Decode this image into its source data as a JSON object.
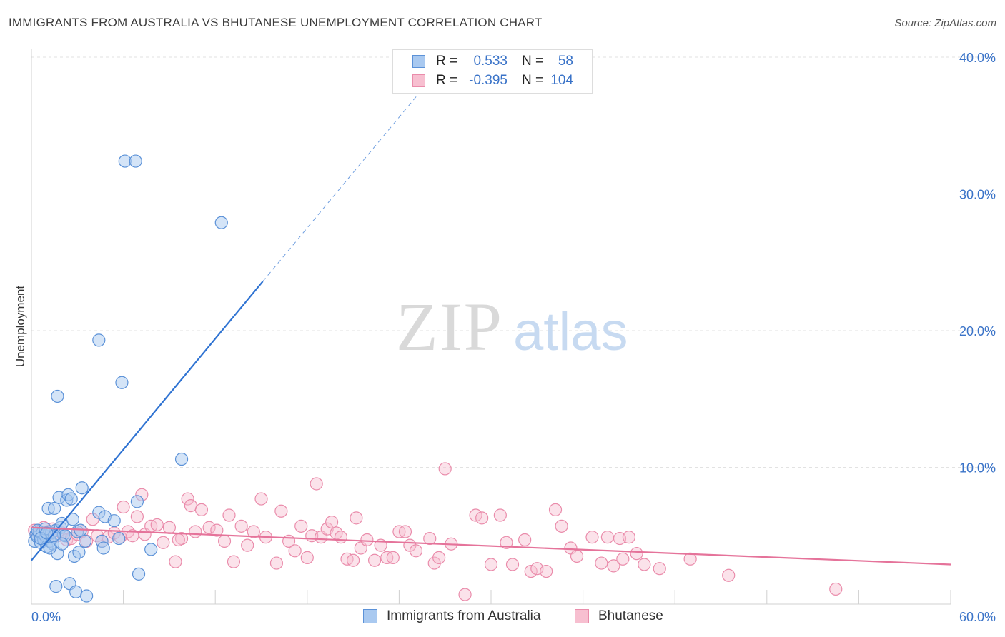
{
  "title": "IMMIGRANTS FROM AUSTRALIA VS BHUTANESE UNEMPLOYMENT CORRELATION CHART",
  "source": "Source: ZipAtlas.com",
  "watermark": {
    "zip": "ZIP",
    "atlas": "atlas"
  },
  "legend_top": [
    {
      "r_label": "R =",
      "r_value": "0.533",
      "n_label": "N =",
      "n_value": "58"
    },
    {
      "r_label": "R =",
      "r_value": "-0.395",
      "n_label": "N =",
      "n_value": "104"
    }
  ],
  "legend_bottom": [
    "Immigrants from Australia",
    "Bhutanese"
  ],
  "colors": {
    "blue_fill": "#a9c9f0",
    "blue_stroke": "#5c92d8",
    "blue_line": "#2f73d2",
    "pink_fill": "#f7bfd0",
    "pink_stroke": "#ea8cab",
    "pink_line": "#e5739a",
    "grid": "#e2e2e2",
    "axis_text": "#3a73c8"
  },
  "chart_data": {
    "type": "scatter",
    "title": "IMMIGRANTS FROM AUSTRALIA VS BHUTANESE UNEMPLOYMENT CORRELATION CHART",
    "xlabel": "",
    "ylabel": "Unemployment",
    "xlim": [
      0,
      60
    ],
    "ylim": [
      0,
      40
    ],
    "x_tick_labels": [
      "0.0%",
      "60.0%"
    ],
    "y_ticks": [
      10,
      20,
      30,
      40
    ],
    "y_tick_labels": [
      "10.0%",
      "20.0%",
      "30.0%",
      "40.0%"
    ],
    "series": [
      {
        "name": "Immigrants from Australia",
        "r": 0.533,
        "n": 58,
        "trend": {
          "x0": 0,
          "y0": 3.2,
          "x1": 15.1,
          "y1": 23.6,
          "dash_x1": 25.4,
          "dash_y1": 37.5
        },
        "points": [
          [
            0.2,
            4.6
          ],
          [
            0.3,
            5.1
          ],
          [
            0.4,
            4.9
          ],
          [
            0.5,
            5.3
          ],
          [
            0.6,
            4.5
          ],
          [
            0.7,
            5.2
          ],
          [
            0.8,
            4.7
          ],
          [
            0.9,
            5.0
          ],
          [
            1.0,
            4.2
          ],
          [
            1.1,
            7.0
          ],
          [
            1.2,
            4.6
          ],
          [
            1.3,
            5.2
          ],
          [
            1.4,
            4.4
          ],
          [
            1.5,
            7.0
          ],
          [
            1.6,
            5.4
          ],
          [
            1.7,
            3.7
          ],
          [
            1.8,
            7.8
          ],
          [
            1.9,
            5.6
          ],
          [
            2.0,
            5.9
          ],
          [
            2.1,
            5.1
          ],
          [
            2.2,
            5.0
          ],
          [
            2.3,
            7.6
          ],
          [
            2.4,
            8.0
          ],
          [
            2.6,
            7.7
          ],
          [
            2.7,
            6.2
          ],
          [
            2.8,
            3.5
          ],
          [
            3.0,
            5.3
          ],
          [
            3.1,
            3.8
          ],
          [
            3.3,
            8.5
          ],
          [
            3.5,
            4.6
          ],
          [
            4.4,
            6.7
          ],
          [
            4.6,
            4.6
          ],
          [
            4.7,
            4.1
          ],
          [
            4.8,
            6.4
          ],
          [
            5.4,
            6.1
          ],
          [
            5.7,
            4.8
          ],
          [
            1.7,
            15.2
          ],
          [
            4.4,
            19.3
          ],
          [
            5.9,
            16.2
          ],
          [
            6.1,
            32.4
          ],
          [
            6.8,
            32.4
          ],
          [
            12.4,
            27.9
          ],
          [
            9.8,
            10.6
          ],
          [
            7.0,
            2.2
          ],
          [
            6.9,
            7.5
          ],
          [
            7.8,
            4.0
          ],
          [
            1.6,
            1.3
          ],
          [
            2.5,
            1.5
          ],
          [
            2.9,
            0.9
          ],
          [
            3.6,
            0.6
          ],
          [
            0.4,
            5.4
          ],
          [
            1.2,
            4.1
          ],
          [
            0.9,
            5.5
          ],
          [
            1.5,
            5.0
          ],
          [
            2.0,
            4.4
          ],
          [
            0.6,
            4.8
          ],
          [
            1.0,
            5.2
          ],
          [
            3.2,
            5.4
          ]
        ]
      },
      {
        "name": "Bhutanese",
        "r": -0.395,
        "n": 104,
        "trend": {
          "x0": 0,
          "y0": 5.6,
          "x1": 60,
          "y1": 2.9
        },
        "points": [
          [
            0.2,
            5.4
          ],
          [
            0.5,
            5.1
          ],
          [
            0.8,
            5.6
          ],
          [
            1.1,
            5.3
          ],
          [
            1.4,
            5.5
          ],
          [
            1.7,
            5.0
          ],
          [
            2.0,
            5.2
          ],
          [
            2.3,
            4.7
          ],
          [
            2.6,
            4.8
          ],
          [
            3.0,
            5.1
          ],
          [
            3.3,
            5.3
          ],
          [
            3.6,
            4.6
          ],
          [
            4.0,
            6.2
          ],
          [
            4.3,
            5.0
          ],
          [
            4.6,
            4.6
          ],
          [
            5.0,
            4.9
          ],
          [
            5.4,
            5.2
          ],
          [
            5.8,
            4.9
          ],
          [
            6.0,
            7.1
          ],
          [
            6.3,
            5.3
          ],
          [
            6.6,
            5.0
          ],
          [
            6.9,
            6.4
          ],
          [
            7.2,
            8.0
          ],
          [
            7.4,
            5.1
          ],
          [
            7.8,
            5.7
          ],
          [
            8.2,
            5.8
          ],
          [
            8.6,
            4.5
          ],
          [
            9.0,
            5.6
          ],
          [
            9.4,
            3.1
          ],
          [
            9.8,
            4.8
          ],
          [
            10.2,
            7.7
          ],
          [
            10.4,
            7.2
          ],
          [
            10.7,
            5.3
          ],
          [
            11.1,
            6.9
          ],
          [
            11.6,
            5.6
          ],
          [
            12.1,
            5.4
          ],
          [
            12.6,
            4.6
          ],
          [
            12.9,
            6.5
          ],
          [
            13.2,
            3.1
          ],
          [
            13.7,
            5.7
          ],
          [
            14.1,
            4.3
          ],
          [
            14.5,
            5.3
          ],
          [
            15.0,
            7.7
          ],
          [
            15.3,
            4.9
          ],
          [
            16.0,
            3.0
          ],
          [
            16.3,
            6.8
          ],
          [
            16.8,
            4.6
          ],
          [
            17.2,
            3.9
          ],
          [
            17.6,
            5.7
          ],
          [
            18.0,
            3.4
          ],
          [
            18.3,
            5.0
          ],
          [
            18.6,
            8.8
          ],
          [
            18.9,
            4.9
          ],
          [
            19.3,
            5.5
          ],
          [
            19.6,
            6.0
          ],
          [
            19.9,
            5.2
          ],
          [
            20.2,
            4.9
          ],
          [
            20.6,
            3.3
          ],
          [
            21.0,
            3.2
          ],
          [
            21.2,
            6.3
          ],
          [
            21.5,
            4.1
          ],
          [
            21.9,
            4.7
          ],
          [
            22.4,
            3.2
          ],
          [
            22.8,
            4.3
          ],
          [
            23.2,
            3.4
          ],
          [
            23.6,
            3.4
          ],
          [
            24.0,
            5.3
          ],
          [
            24.4,
            5.3
          ],
          [
            24.7,
            4.3
          ],
          [
            25.1,
            3.9
          ],
          [
            26.0,
            4.8
          ],
          [
            26.3,
            3.0
          ],
          [
            26.6,
            3.4
          ],
          [
            27.0,
            9.9
          ],
          [
            27.4,
            4.4
          ],
          [
            28.3,
            0.7
          ],
          [
            29.0,
            6.5
          ],
          [
            29.4,
            6.3
          ],
          [
            30.0,
            2.9
          ],
          [
            30.6,
            6.5
          ],
          [
            31.0,
            4.5
          ],
          [
            31.4,
            2.9
          ],
          [
            32.2,
            4.7
          ],
          [
            32.6,
            2.4
          ],
          [
            33.0,
            2.6
          ],
          [
            33.6,
            2.4
          ],
          [
            34.2,
            6.9
          ],
          [
            34.6,
            5.7
          ],
          [
            35.2,
            4.1
          ],
          [
            35.6,
            3.5
          ],
          [
            36.6,
            4.9
          ],
          [
            37.2,
            3.0
          ],
          [
            37.6,
            4.9
          ],
          [
            38.0,
            2.8
          ],
          [
            38.4,
            4.8
          ],
          [
            38.6,
            3.3
          ],
          [
            39.0,
            4.9
          ],
          [
            39.5,
            3.7
          ],
          [
            40.0,
            2.9
          ],
          [
            41.0,
            2.6
          ],
          [
            43.0,
            3.3
          ],
          [
            45.5,
            2.1
          ],
          [
            52.5,
            1.1
          ],
          [
            9.6,
            4.7
          ]
        ]
      }
    ]
  }
}
